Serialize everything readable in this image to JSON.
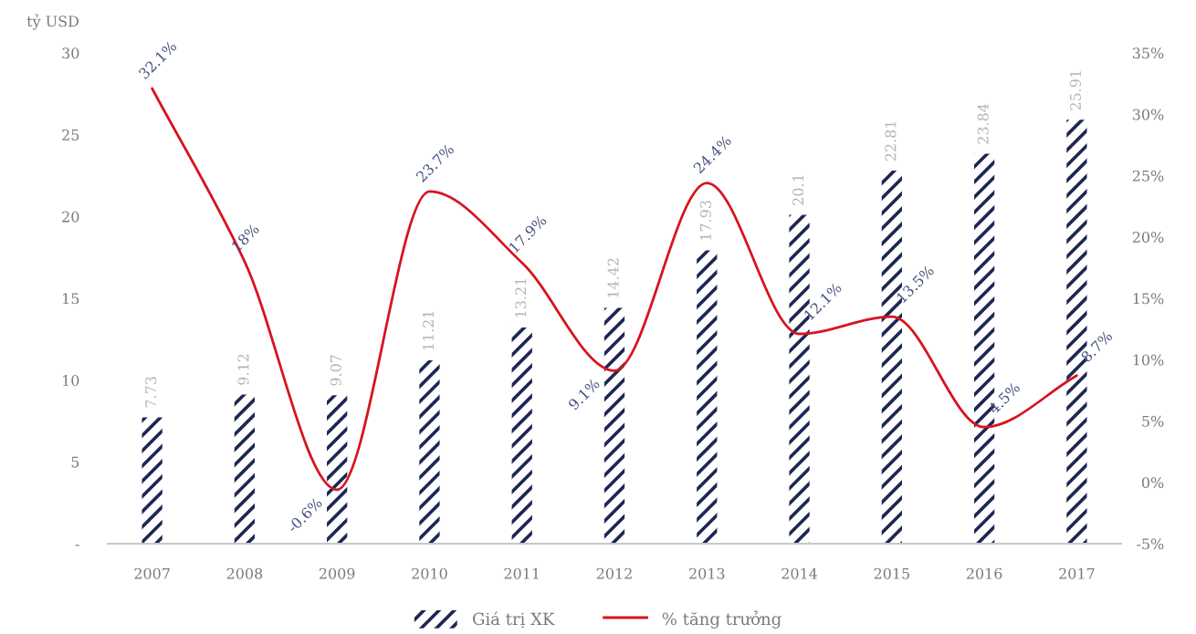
{
  "chart_data": {
    "type": "bar",
    "ylabel": "tỷ USD",
    "categories": [
      "2007",
      "2008",
      "2009",
      "2010",
      "2011",
      "2012",
      "2013",
      "2014",
      "2015",
      "2016",
      "2017"
    ],
    "series": [
      {
        "name": "Giá trị XK",
        "color": "#1c2754",
        "values": [
          7.73,
          9.12,
          9.07,
          11.21,
          13.21,
          14.42,
          17.93,
          20.1,
          22.81,
          23.84,
          25.91
        ],
        "value_labels": [
          "7.73",
          "9.12",
          "9.07",
          "11.21",
          "13.21",
          "14.42",
          "17.93",
          "20.1",
          "22.81",
          "23.84",
          "25.91"
        ]
      },
      {
        "name": "% tăng trưởng",
        "type": "line",
        "axis": "y2",
        "color": "#d7141e",
        "line_style": "solid",
        "values": [
          32.1,
          18,
          -0.6,
          23.7,
          17.9,
          9.1,
          24.4,
          12.1,
          13.5,
          4.5,
          8.7
        ],
        "value_labels": [
          "32.1%",
          "18%",
          "-0.6%",
          "23.7%",
          "17.9%",
          "9.1%",
          "24.4%",
          "12.1%",
          "13.5%",
          "4.5%",
          "8.7%"
        ]
      }
    ],
    "ylim": [
      0,
      30
    ],
    "yticks": [
      {
        "value": 0,
        "label": "-"
      },
      5,
      10,
      15,
      20,
      25,
      30
    ],
    "y2lim": [
      -5,
      35
    ],
    "y2ticks": [
      {
        "value": -5,
        "label": "-5%"
      },
      {
        "value": 0,
        "label": "0%"
      },
      {
        "value": 5,
        "label": "5%"
      },
      {
        "value": 10,
        "label": "10%"
      },
      {
        "value": 15,
        "label": "15%"
      },
      {
        "value": 20,
        "label": "20%"
      },
      {
        "value": 25,
        "label": "25%"
      },
      {
        "value": 30,
        "label": "30%"
      },
      {
        "value": 35,
        "label": "35%"
      }
    ],
    "legend": "bottom"
  }
}
